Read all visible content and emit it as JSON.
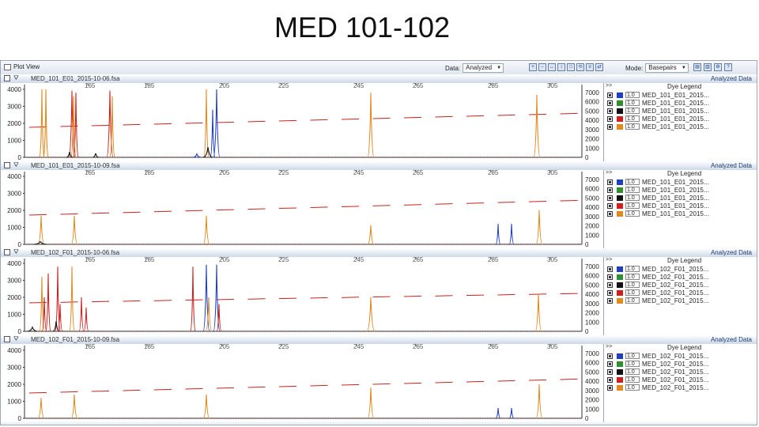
{
  "slide_title": "MED 101-102",
  "toolbar": {
    "title": "Plot View",
    "data_label": "Data:",
    "data_value": "Analyzed",
    "mode_label": "Mode:",
    "mode_value": "Basepairs"
  },
  "x_ticks": [
    "165",
    "185",
    "205",
    "225",
    "245",
    "265",
    "285",
    "305"
  ],
  "panels": [
    {
      "filename": "MED_101_E01_2015-10-06.fsa",
      "analyzed": "Analyzed Data",
      "left_ticks": [
        "4000",
        "3000",
        "2000",
        "1000",
        "0"
      ],
      "right_ticks": [
        "7000",
        "6000",
        "5000",
        "4000",
        "3000",
        "2000",
        "1000",
        "0"
      ],
      "legend_top": ">>",
      "legend_title": "Dye Legend",
      "legend": [
        {
          "scale": "1.0",
          "name": "MED_101_E01_2015..."
        },
        {
          "scale": "1.0",
          "name": "MED_101_E01_2015..."
        },
        {
          "scale": "1.0",
          "name": "MED_101_E01_2015..."
        },
        {
          "scale": "1.0",
          "name": "MED_101_E01_2015..."
        },
        {
          "scale": "1.0",
          "name": "MED_101_E01_2015..."
        }
      ]
    },
    {
      "filename": "MED_101_E01_2015-10-09.fsa",
      "analyzed": "Analyzed Data",
      "left_ticks": [
        "4000",
        "3000",
        "2000",
        "1000",
        "0"
      ],
      "right_ticks": [
        "7000",
        "6000",
        "5000",
        "4000",
        "3000",
        "2000",
        "1000",
        "0"
      ],
      "legend_top": ">>",
      "legend_title": "Dye Legend",
      "legend": [
        {
          "scale": "1.0",
          "name": "MED_101_E01_2015..."
        },
        {
          "scale": "1.0",
          "name": "MED_101_E01_2015..."
        },
        {
          "scale": "1.0",
          "name": "MED_101_E01_2015..."
        },
        {
          "scale": "1.0",
          "name": "MED_101_E01_2015..."
        },
        {
          "scale": "1.0",
          "name": "MED_101_E01_2015..."
        }
      ]
    },
    {
      "filename": "MED_102_F01_2015-10-06.fsa",
      "analyzed": "Analyzed Data",
      "left_ticks": [
        "4000",
        "3000",
        "2000",
        "1000",
        "0"
      ],
      "right_ticks": [
        "7000",
        "6000",
        "5000",
        "4000",
        "3000",
        "2000",
        "1000",
        "0"
      ],
      "legend_top": ">>",
      "legend_title": "Dye Legend",
      "legend": [
        {
          "scale": "1.0",
          "name": "MED_102_F01_2015..."
        },
        {
          "scale": "1.0",
          "name": "MED_102_F01_2015..."
        },
        {
          "scale": "1.0",
          "name": "MED_102_F01_2015..."
        },
        {
          "scale": "1.0",
          "name": "MED_102_F01_2015..."
        },
        {
          "scale": "1.0",
          "name": "MED_102_F01_2015..."
        }
      ]
    },
    {
      "filename": "MED_102_F01_2015-10-09.fsa",
      "analyzed": "Analyzed Data",
      "left_ticks": [
        "4000",
        "3000",
        "2000",
        "1000",
        "0"
      ],
      "right_ticks": [
        "7000",
        "6000",
        "5000",
        "4000",
        "3000",
        "2000",
        "1000",
        "0"
      ],
      "legend_top": ">>",
      "legend_title": "Dye Legend",
      "legend": [
        {
          "scale": "1.0",
          "name": "MED_102_F01_2015..."
        },
        {
          "scale": "1.0",
          "name": "MED_102_F01_2015..."
        },
        {
          "scale": "1.0",
          "name": "MED_102_F01_2015..."
        },
        {
          "scale": "1.0",
          "name": "MED_102_F01_2015..."
        },
        {
          "scale": "1.0",
          "name": "MED_102_F01_2015..."
        }
      ]
    }
  ],
  "dye_colors": [
    "#1f3fbf",
    "#2f8f2f",
    "#111111",
    "#cc2020",
    "#e08a1e"
  ]
}
